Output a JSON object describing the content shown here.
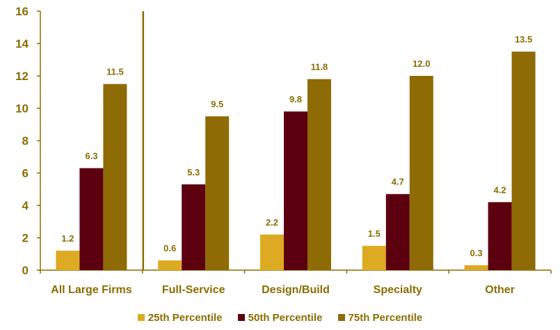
{
  "chart_data": {
    "type": "bar",
    "categories": [
      "All Large Firms",
      "Full-Service",
      "Design/Build",
      "Specialty",
      "Other"
    ],
    "series": [
      {
        "name": "25th Percentile",
        "color": "#ddaa22",
        "values": [
          1.2,
          0.6,
          2.2,
          1.5,
          0.3
        ],
        "labels": [
          "1.2",
          "0.6",
          "2.2",
          "1.5",
          "0.3"
        ]
      },
      {
        "name": "50th Percentile",
        "color": "#5c0010",
        "values": [
          6.3,
          5.3,
          9.8,
          4.7,
          4.2
        ],
        "labels": [
          "6.3",
          "5.3",
          "9.8",
          "4.7",
          "4.2"
        ]
      },
      {
        "name": "75th Percentile",
        "color": "#8f6b06",
        "values": [
          11.5,
          9.5,
          11.8,
          12.0,
          13.5
        ],
        "labels": [
          "11.5",
          "9.5",
          "11.8",
          "12.0",
          "13.5"
        ]
      }
    ],
    "title": "",
    "xlabel": "",
    "ylabel": "",
    "ylim": [
      0,
      16
    ],
    "yticks": [
      "0",
      "2",
      "4",
      "6",
      "8",
      "10",
      "12",
      "14",
      "16"
    ],
    "grid": false,
    "legend_position": "bottom",
    "separator_after_category": 0,
    "text_color": "#8a6d00",
    "axis_color": "#8a6d00"
  }
}
